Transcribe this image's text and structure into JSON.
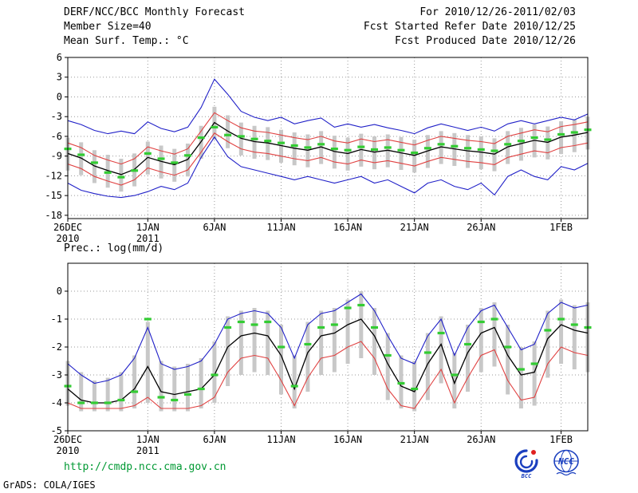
{
  "header": {
    "title": "DERF/NCC/BCC Monthly Forecast",
    "member_size": "Member Size=40",
    "for_range": "For 2010/12/26-2011/02/03",
    "fcst_refer": "Fcst Started Refer Date 2010/12/25",
    "fcst_produced": "Fcst Produced Date 2010/12/26"
  },
  "footer": {
    "url": "http://cmdp.ncc.cma.gov.cn",
    "grads_credit": "GrADS: COLA/IGES",
    "logo_bcc": "BCC",
    "logo_ncc": "NCC"
  },
  "colors": {
    "blue": "#2020c8",
    "red": "#e04040",
    "black": "#000000",
    "green": "#33cc33",
    "bar": "#c8c8c8",
    "grid": "#999999",
    "url_green": "#009933",
    "logo_blue": "#1a3fbf",
    "logo_red": "#e02020"
  },
  "chart_data": [
    {
      "id": "temperature",
      "type": "line",
      "title": "Mean Surf. Temp.: °C",
      "ylim": [
        -18.5,
        6
      ],
      "yticks": [
        6,
        3,
        0,
        -3,
        -6,
        -9,
        -12,
        -15,
        -18
      ],
      "n_days": 40,
      "grid": true,
      "xticks": [
        {
          "i": 0,
          "label": "26DEC",
          "sub": "2010"
        },
        {
          "i": 6,
          "label": "1JAN",
          "sub": "2011"
        },
        {
          "i": 11,
          "label": "6JAN"
        },
        {
          "i": 16,
          "label": "11JAN"
        },
        {
          "i": 21,
          "label": "16JAN"
        },
        {
          "i": 26,
          "label": "21JAN"
        },
        {
          "i": 31,
          "label": "26JAN"
        },
        {
          "i": 37,
          "label": "1FEB"
        }
      ],
      "series": [
        {
          "name": "ensemble-max",
          "color": "blue",
          "values": [
            -3.6,
            -4.2,
            -5.1,
            -5.6,
            -5.2,
            -5.6,
            -3.8,
            -4.8,
            -5.3,
            -4.6,
            -1.6,
            2.7,
            0.4,
            -2.2,
            -3.1,
            -3.6,
            -3.1,
            -4.1,
            -3.6,
            -3.2,
            -4.6,
            -4.1,
            -4.6,
            -4.2,
            -4.7,
            -5.1,
            -5.6,
            -4.7,
            -4.1,
            -4.6,
            -5.1,
            -4.6,
            -5.2,
            -4.1,
            -3.6,
            -4.1,
            -3.6,
            -3.1,
            -3.5,
            -2.6
          ]
        },
        {
          "name": "upper-spread",
          "color": "red",
          "values": [
            -7.0,
            -7.7,
            -8.9,
            -9.6,
            -10.2,
            -9.4,
            -7.6,
            -8.2,
            -8.7,
            -7.9,
            -5.2,
            -2.4,
            -3.6,
            -4.7,
            -5.2,
            -5.4,
            -5.8,
            -6.2,
            -6.5,
            -6.0,
            -6.7,
            -7.0,
            -6.4,
            -6.8,
            -6.5,
            -6.9,
            -7.3,
            -6.6,
            -6.0,
            -6.3,
            -6.6,
            -6.8,
            -7.1,
            -6.0,
            -5.5,
            -5.0,
            -5.3,
            -4.5,
            -4.2,
            -3.8
          ]
        },
        {
          "name": "ensemble-mean",
          "color": "black",
          "values": [
            -8.6,
            -9.3,
            -10.5,
            -11.2,
            -11.8,
            -11.0,
            -9.2,
            -9.8,
            -10.3,
            -9.5,
            -6.8,
            -3.9,
            -5.2,
            -6.3,
            -6.8,
            -7.0,
            -7.4,
            -7.8,
            -8.1,
            -7.6,
            -8.3,
            -8.6,
            -8.0,
            -8.4,
            -8.1,
            -8.5,
            -8.9,
            -8.2,
            -7.6,
            -7.9,
            -8.2,
            -8.4,
            -8.7,
            -7.6,
            -7.1,
            -6.6,
            -6.9,
            -6.1,
            -5.8,
            -5.4
          ]
        },
        {
          "name": "lower-spread",
          "color": "red",
          "values": [
            -10.2,
            -10.9,
            -12.1,
            -12.8,
            -13.4,
            -12.6,
            -10.8,
            -11.4,
            -11.9,
            -11.1,
            -8.4,
            -5.5,
            -6.8,
            -7.9,
            -8.4,
            -8.6,
            -9.0,
            -9.4,
            -9.7,
            -9.2,
            -9.9,
            -10.2,
            -9.6,
            -10.0,
            -9.7,
            -10.1,
            -10.5,
            -9.8,
            -9.2,
            -9.5,
            -9.8,
            -10.0,
            -10.3,
            -9.2,
            -8.7,
            -8.2,
            -8.5,
            -7.7,
            -7.4,
            -7.0
          ]
        },
        {
          "name": "ensemble-min",
          "color": "blue",
          "values": [
            -13.1,
            -14.2,
            -14.7,
            -15.1,
            -15.3,
            -15.0,
            -14.4,
            -13.6,
            -14.1,
            -13.1,
            -9.2,
            -6.1,
            -9.1,
            -10.6,
            -11.1,
            -11.6,
            -12.1,
            -12.6,
            -12.1,
            -12.6,
            -13.1,
            -12.6,
            -12.1,
            -13.1,
            -12.6,
            -13.6,
            -14.6,
            -13.1,
            -12.6,
            -13.6,
            -14.1,
            -13.1,
            -14.9,
            -12.1,
            -11.1,
            -12.1,
            -12.6,
            -10.6,
            -11.1,
            -10.1
          ]
        }
      ],
      "obs_dashes": {
        "name": "observation",
        "color": "green",
        "values": [
          -7.9,
          -8.8,
          -10.0,
          -11.5,
          -12.2,
          -11.2,
          -8.6,
          -9.4,
          -10.0,
          -8.9,
          -6.2,
          -4.6,
          -5.8,
          -6.0,
          -6.4,
          -6.7,
          -7.0,
          -7.4,
          -7.7,
          -7.2,
          -7.9,
          -8.1,
          -7.6,
          -8.0,
          -7.7,
          -8.1,
          -8.5,
          -7.8,
          -7.2,
          -7.5,
          -7.8,
          -8.0,
          -8.2,
          -7.2,
          -6.7,
          -6.2,
          -6.5,
          -5.7,
          -5.4,
          -5.0
        ]
      },
      "spread_bars": {
        "top": [
          -6.2,
          -6.9,
          -8.1,
          -8.8,
          -9.4,
          -8.6,
          -6.8,
          -7.4,
          -7.9,
          -7.1,
          -4.4,
          -1.5,
          -2.8,
          -3.9,
          -4.4,
          -4.6,
          -5.0,
          -5.4,
          -5.7,
          -5.2,
          -5.9,
          -6.2,
          -5.6,
          -6.0,
          -5.7,
          -6.1,
          -6.5,
          -5.8,
          -5.2,
          -5.5,
          -5.8,
          -6.0,
          -6.3,
          -5.2,
          -4.7,
          -4.2,
          -4.5,
          -3.7,
          -3.4,
          -3.0
        ],
        "bottom": [
          -11.2,
          -11.9,
          -13.1,
          -13.8,
          -14.4,
          -13.6,
          -11.8,
          -12.4,
          -12.9,
          -12.1,
          -9.4,
          -6.5,
          -7.8,
          -8.9,
          -9.4,
          -9.6,
          -10.0,
          -10.4,
          -10.7,
          -10.2,
          -10.9,
          -11.2,
          -10.6,
          -11.0,
          -10.7,
          -11.1,
          -11.5,
          -10.8,
          -10.2,
          -10.5,
          -10.8,
          -11.0,
          -11.3,
          -10.2,
          -9.7,
          -9.2,
          -9.5,
          -8.7,
          -8.4,
          -8.0
        ]
      }
    },
    {
      "id": "precipitation",
      "type": "line",
      "title": "Prec.: log(mm/d)",
      "ylim": [
        -5,
        1
      ],
      "yticks": [
        0,
        -1,
        -2,
        -3,
        -4,
        -5
      ],
      "n_days": 40,
      "grid": true,
      "xticks": [
        {
          "i": 0,
          "label": "26DEC",
          "sub": "2010"
        },
        {
          "i": 6,
          "label": "1JAN",
          "sub": "2011"
        },
        {
          "i": 11,
          "label": "6JAN"
        },
        {
          "i": 16,
          "label": "11JAN"
        },
        {
          "i": 21,
          "label": "16JAN"
        },
        {
          "i": 26,
          "label": "21JAN"
        },
        {
          "i": 31,
          "label": "26JAN"
        },
        {
          "i": 37,
          "label": "1FEB"
        }
      ],
      "series": [
        {
          "name": "ensemble-max",
          "color": "blue",
          "values": [
            -2.6,
            -3.0,
            -3.3,
            -3.2,
            -3.0,
            -2.4,
            -1.3,
            -2.6,
            -2.8,
            -2.7,
            -2.5,
            -1.9,
            -1.0,
            -0.8,
            -0.7,
            -0.8,
            -1.3,
            -2.4,
            -1.2,
            -0.8,
            -0.7,
            -0.4,
            -0.1,
            -0.7,
            -1.6,
            -2.4,
            -2.6,
            -1.6,
            -1.0,
            -2.3,
            -1.3,
            -0.7,
            -0.5,
            -1.3,
            -2.1,
            -1.9,
            -0.8,
            -0.4,
            -0.6,
            -0.5
          ]
        },
        {
          "name": "ensemble-mean",
          "color": "black",
          "values": [
            -3.5,
            -3.9,
            -4.0,
            -4.0,
            -3.9,
            -3.5,
            -2.7,
            -3.6,
            -3.7,
            -3.6,
            -3.5,
            -3.0,
            -2.0,
            -1.6,
            -1.5,
            -1.6,
            -2.3,
            -3.5,
            -2.2,
            -1.6,
            -1.5,
            -1.2,
            -1.0,
            -1.6,
            -2.6,
            -3.4,
            -3.6,
            -2.6,
            -1.9,
            -3.3,
            -2.2,
            -1.5,
            -1.3,
            -2.3,
            -3.0,
            -2.9,
            -1.7,
            -1.2,
            -1.4,
            -1.5
          ]
        },
        {
          "name": "ensemble-min",
          "color": "red",
          "values": [
            -4.0,
            -4.2,
            -4.2,
            -4.2,
            -4.2,
            -4.1,
            -3.8,
            -4.2,
            -4.2,
            -4.2,
            -4.1,
            -3.8,
            -2.9,
            -2.4,
            -2.3,
            -2.4,
            -3.2,
            -4.1,
            -3.1,
            -2.4,
            -2.3,
            -2.0,
            -1.8,
            -2.4,
            -3.5,
            -4.1,
            -4.2,
            -3.5,
            -2.8,
            -4.0,
            -3.1,
            -2.3,
            -2.1,
            -3.2,
            -3.9,
            -3.8,
            -2.6,
            -2.0,
            -2.2,
            -2.3
          ]
        }
      ],
      "obs_dashes": {
        "name": "observation",
        "color": "green",
        "values": [
          -3.4,
          -4.0,
          -4.0,
          -4.0,
          -3.9,
          -3.6,
          -1.0,
          -3.8,
          -3.9,
          -3.7,
          -3.5,
          -3.0,
          -1.3,
          -1.1,
          -1.2,
          -1.1,
          -2.0,
          -3.4,
          -1.9,
          -1.3,
          -1.2,
          -0.6,
          -0.5,
          -1.3,
          -2.3,
          -3.3,
          -3.5,
          -2.2,
          -1.5,
          -3.0,
          -1.9,
          -1.1,
          -1.0,
          -2.0,
          -2.8,
          -2.6,
          -1.4,
          -1.0,
          -1.2,
          -1.3
        ]
      },
      "spread_bars": {
        "top": [
          -2.5,
          -2.9,
          -3.2,
          -3.1,
          -2.9,
          -2.3,
          -1.1,
          -2.5,
          -2.7,
          -2.6,
          -2.4,
          -1.8,
          -0.9,
          -0.7,
          -0.6,
          -0.7,
          -1.2,
          -2.3,
          -1.1,
          -0.7,
          -0.6,
          -0.3,
          0.0,
          -0.6,
          -1.5,
          -2.3,
          -2.5,
          -1.5,
          -0.9,
          -2.2,
          -1.2,
          -0.6,
          -0.4,
          -1.2,
          -2.0,
          -1.8,
          -0.7,
          -0.3,
          -0.5,
          -0.4
        ],
        "bottom": [
          -4.1,
          -4.3,
          -4.3,
          -4.3,
          -4.3,
          -4.2,
          -4.0,
          -4.3,
          -4.3,
          -4.3,
          -4.2,
          -4.0,
          -3.4,
          -3.0,
          -2.9,
          -3.0,
          -3.7,
          -4.2,
          -3.6,
          -3.0,
          -2.9,
          -2.6,
          -2.4,
          -3.0,
          -3.9,
          -4.2,
          -4.3,
          -3.9,
          -3.3,
          -4.2,
          -3.6,
          -2.9,
          -2.7,
          -3.7,
          -4.2,
          -4.1,
          -3.1,
          -2.6,
          -2.8,
          -2.9
        ]
      }
    }
  ]
}
